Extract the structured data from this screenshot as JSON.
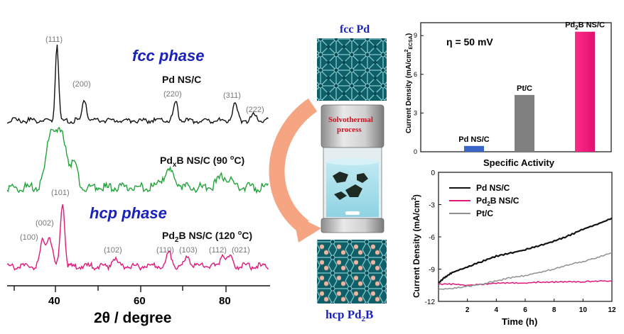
{
  "xrd": {
    "fcc_title": "fcc phase",
    "hcp_title": "hcp phase",
    "xlabel": "2θ / degree",
    "xticks": [
      "40",
      "60",
      "80"
    ],
    "samples": {
      "pd": "Pd NS/C",
      "pdxb_main": "Pd",
      "pdxb_sub": "x",
      "pdxb_rest": "B NS/C (90 ",
      "pdxb_sup": "o",
      "pdxb_end": "C)",
      "pd2b_main": "Pd",
      "pd2b_sub": "2",
      "pd2b_rest": "B NS/C (120 ",
      "pd2b_sup": "o",
      "pd2b_end": "C)"
    },
    "fcc_peaks": [
      "(111)",
      "(200)",
      "(220)",
      "(311)",
      "(222)"
    ],
    "hcp_peaks": [
      "(101)",
      "(002)",
      "(100)",
      "(102)",
      "(110)",
      "(103)",
      "(112)",
      "(021)"
    ],
    "colors": {
      "pd": "#111111",
      "pdxb": "#22a33a",
      "pd2b": "#e0197a",
      "fcc_title": "#1a22b8",
      "hcp_title": "#1a22b8"
    }
  },
  "schematic": {
    "top_label": "fcc Pd",
    "reactor_line1": "Solvothermal",
    "reactor_line2": "process",
    "bottom_main": "hcp Pd",
    "bottom_sub": "2",
    "bottom_end": "B"
  },
  "chart_data": [
    {
      "type": "bar",
      "title": "η = 50 mV",
      "xlabel": "Specific Activity",
      "ylabel": "Current Density (mA/cm²ECSA)",
      "ylim": [
        0,
        10
      ],
      "yticks": [
        "0",
        "3",
        "6",
        "9"
      ],
      "categories": [
        "Pd NS/C",
        "Pt/C",
        "Pd2B NS/C"
      ],
      "values": [
        0.45,
        4.4,
        9.3
      ],
      "colors": [
        "#3a66c8",
        "#808080",
        "#ff1f7a"
      ]
    },
    {
      "type": "line",
      "xlabel": "Time (h)",
      "ylabel": "Current Density (mA/cm²)",
      "xlim": [
        0,
        12
      ],
      "ylim": [
        -12,
        0
      ],
      "xticks": [
        "2",
        "4",
        "6",
        "8",
        "10",
        "12"
      ],
      "yticks": [
        "0",
        "-3",
        "-6",
        "-9",
        "-12"
      ],
      "legend": "top-left",
      "series": [
        {
          "name": "Pd NS/C",
          "color": "#111111",
          "x": [
            0,
            0.5,
            1,
            2,
            3,
            4,
            5,
            6,
            7,
            8,
            9,
            10,
            11,
            12
          ],
          "y": [
            -10.3,
            -9.7,
            -9.3,
            -8.8,
            -8.3,
            -7.8,
            -7.5,
            -7.2,
            -6.8,
            -6.4,
            -5.9,
            -5.3,
            -4.8,
            -4.3
          ]
        },
        {
          "name": "Pd2B NS/C",
          "color": "#e0197a",
          "x": [
            0,
            1,
            2,
            3,
            4,
            5,
            6,
            7,
            8,
            9,
            10,
            11,
            12
          ],
          "y": [
            -10.4,
            -10.4,
            -10.5,
            -10.4,
            -10.3,
            -10.3,
            -10.3,
            -10.2,
            -10.2,
            -10.2,
            -10.2,
            -10.1,
            -10.1
          ]
        },
        {
          "name": "Pt/C",
          "color": "#909090",
          "x": [
            0,
            1,
            2,
            3,
            4,
            5,
            6,
            7,
            8,
            9,
            10,
            11,
            12
          ],
          "y": [
            -10.9,
            -10.8,
            -10.6,
            -10.4,
            -10.1,
            -9.8,
            -9.6,
            -9.3,
            -9.0,
            -8.6,
            -8.3,
            -7.9,
            -7.5
          ]
        }
      ]
    }
  ]
}
